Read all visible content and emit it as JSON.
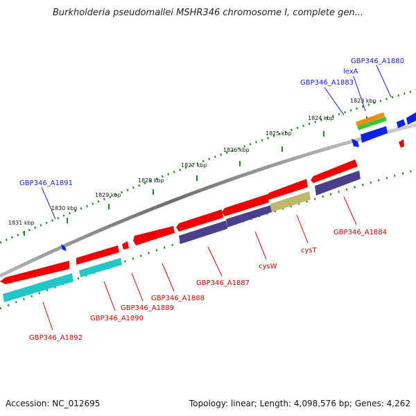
{
  "title": "Burkholderia pseudomallei MSHR346 chromosome I, complete gen...",
  "footer": {
    "accession": "Accession: NC_012695",
    "summary": "Topology: linear; Length: 4,098,576 bp; Genes: 4,262"
  },
  "scale": {
    "ticks": [
      "1831 kbp",
      "1830 kbp",
      "1829 kbp",
      "1828 kbp",
      "1827 kbp",
      "1826 kbp",
      "1825 kbp",
      "1824 kbp",
      "1823 kbp"
    ]
  },
  "gene_labels": {
    "top": [
      "GBP346_A1891",
      "GBP346_A1883",
      "lexA",
      "GBP346_A1880"
    ],
    "bottom": [
      "GBP346_A1892",
      "GBP346_A1890",
      "GBP346_A1889",
      "GBP346_A1888",
      "GBP346_A1887",
      "cysW",
      "cysT",
      "GBP346_A1884"
    ]
  },
  "colors": {
    "gene": "#ee0000",
    "cds_bottom_purple": "#4b3f8c",
    "cds_bottom_cyan": "#22c6c6",
    "cds_bottom_olive": "#bdb76b",
    "gene_top": "#0a22e8",
    "cds_top_orange": "#f08c00",
    "cds_top_green": "#3cc43c",
    "tick": "#1a8a1a",
    "top_label": "#1a1ac8",
    "bottom_label": "#cc0000",
    "backbone": "#7a7a7a"
  }
}
